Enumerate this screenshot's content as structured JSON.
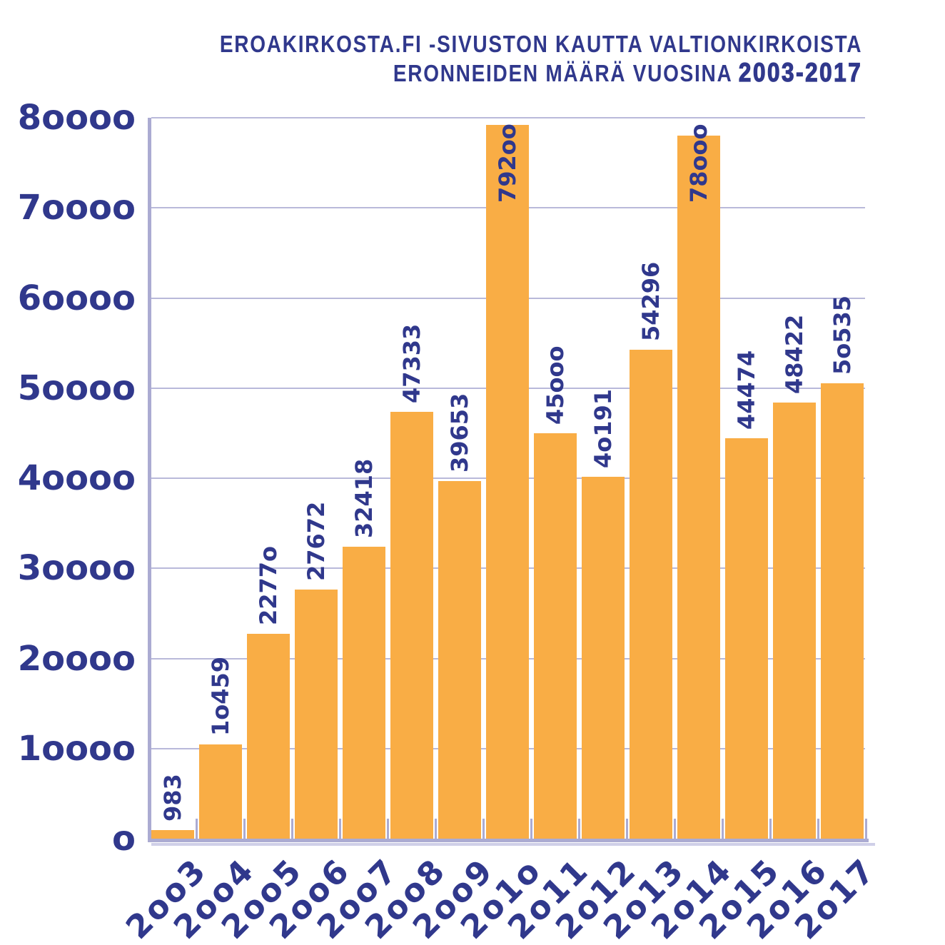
{
  "title": {
    "line1": "EROAKIRKOSTA.FI -SIVUSTON KAUTTA VALTIONKIRKOISTA",
    "line2_prefix": "ERONNEIDEN MÄÄRÄ VUOSINA ",
    "line2_range": "2003-2017"
  },
  "colors": {
    "navy_text": "#30388C",
    "bar_orange": "#F9AD45",
    "gridline": "#B9B9DA",
    "axis": "#ABABD2",
    "axis_shadow": "#CFCFE8",
    "background": "#FFFFFF"
  },
  "chart_data": {
    "type": "bar",
    "title": "EROAKIRKOSTA.FI -SIVUSTON KAUTTA VALTIONKIRKOISTA ERONNEIDEN MÄÄRÄ VUOSINA 2003-2017",
    "categories": [
      "2003",
      "2004",
      "2005",
      "2006",
      "2007",
      "2008",
      "2009",
      "2010",
      "2011",
      "2012",
      "2013",
      "2014",
      "2015",
      "2016",
      "2017"
    ],
    "values": [
      983,
      10459,
      22770,
      27672,
      32418,
      47333,
      39653,
      79200,
      45000,
      40191,
      54296,
      78000,
      44474,
      48422,
      50535
    ],
    "bar_value_labels": [
      "983",
      "10459",
      "22770",
      "27672",
      "32418",
      "47333",
      "39653",
      "79200",
      "45000",
      "40191",
      "54296",
      "78000",
      "44474",
      "48422",
      "50535"
    ],
    "xlabel": "",
    "ylabel": "",
    "ylim": [
      0,
      80000
    ],
    "yticks": [
      0,
      10000,
      20000,
      30000,
      40000,
      50000,
      60000,
      70000,
      80000
    ],
    "grid": true,
    "legend": false,
    "value_label_rotation": 90,
    "x_tick_rotation": 45,
    "numeral_style": "old-style (zeros drawn as small circles)"
  }
}
